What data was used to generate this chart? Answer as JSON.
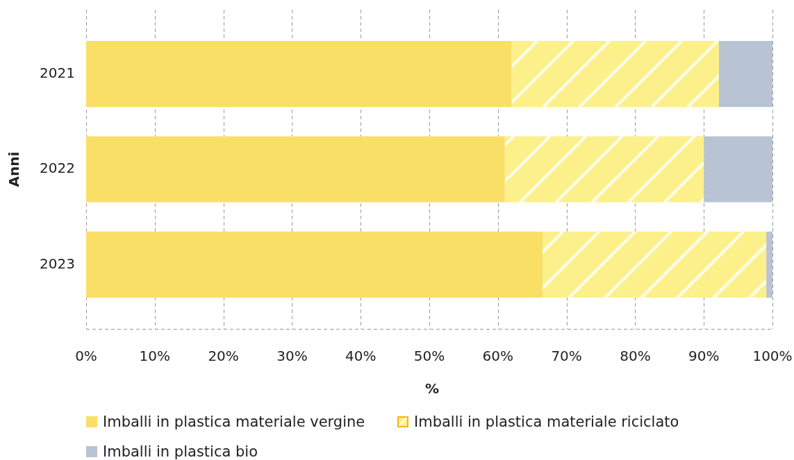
{
  "chart_data": {
    "type": "bar",
    "orientation": "horizontal",
    "stacked": true,
    "categories": [
      "2021",
      "2022",
      "2023"
    ],
    "series": [
      {
        "name": "Imballi in plastica materiale vergine",
        "color": "#f9df66",
        "values": [
          62,
          61,
          66.5
        ]
      },
      {
        "name": "Imballi in plastica materiale riciclato",
        "color": "#fcf08a",
        "values": [
          30.2,
          29,
          32.6
        ]
      },
      {
        "name": "Imballi in plastica bio",
        "color": "#b8c4d4",
        "values": [
          7.8,
          10,
          0.9
        ]
      }
    ],
    "xlim": [
      0,
      100
    ],
    "xticks": [
      {
        "value": 0,
        "label": "0%"
      },
      {
        "value": 10,
        "label": "10%"
      },
      {
        "value": 20,
        "label": "20%"
      },
      {
        "value": 30,
        "label": "30%"
      },
      {
        "value": 40,
        "label": "40%"
      },
      {
        "value": 50,
        "label": "50%"
      },
      {
        "value": 60,
        "label": "60%"
      },
      {
        "value": 70,
        "label": "70%"
      },
      {
        "value": 80,
        "label": "80%"
      },
      {
        "value": 90,
        "label": "90%"
      },
      {
        "value": 100,
        "label": "100%"
      }
    ],
    "xlabel": "%",
    "ylabel": "Anni",
    "grid": "x",
    "legend": "bottom"
  }
}
